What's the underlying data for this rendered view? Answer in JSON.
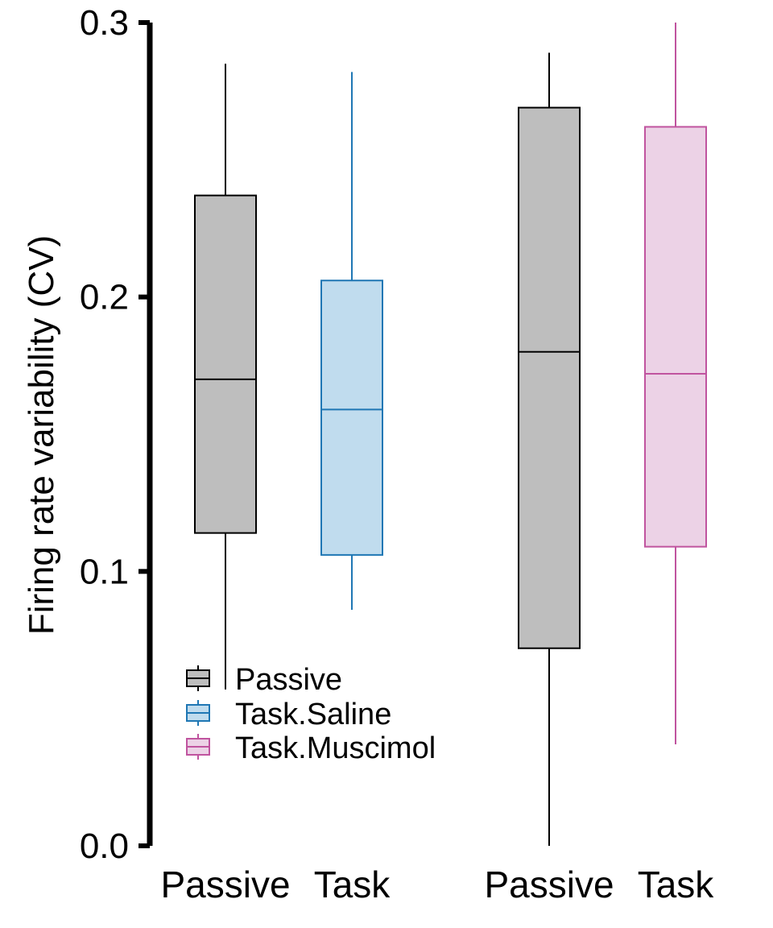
{
  "chart_data": {
    "type": "boxplot",
    "ylabel": "Firing rate variability (CV)",
    "xlabel": "",
    "ylim": [
      0,
      0.3
    ],
    "yticks": [
      0.0,
      0.1,
      0.2,
      0.3
    ],
    "ytick_labels": [
      "0.0",
      "0.1",
      "0.2",
      "0.3"
    ],
    "grid": false,
    "legend_position": "bottom-left",
    "legend": [
      {
        "label": "Passive",
        "stroke": "#000000",
        "fill": "#bebebe"
      },
      {
        "label": "Task.Saline",
        "stroke": "#1f77b4",
        "fill": "#c0dcee"
      },
      {
        "label": "Task.Muscimol",
        "stroke": "#c0549f",
        "fill": "#ecd2e6"
      }
    ],
    "categories": [
      "Passive",
      "Task",
      "Passive",
      "Task"
    ],
    "boxes": [
      {
        "category": "Passive",
        "group": "Passive",
        "min": 0.057,
        "q1": 0.114,
        "median": 0.17,
        "q3": 0.237,
        "max": 0.285
      },
      {
        "category": "Task",
        "group": "Task.Saline",
        "min": 0.086,
        "q1": 0.106,
        "median": 0.159,
        "q3": 0.206,
        "max": 0.282
      },
      {
        "category": "Passive",
        "group": "Passive",
        "min": 0.0,
        "q1": 0.072,
        "median": 0.18,
        "q3": 0.269,
        "max": 0.289
      },
      {
        "category": "Task",
        "group": "Task.Muscimol",
        "min": 0.037,
        "q1": 0.109,
        "median": 0.172,
        "q3": 0.262,
        "max": 0.3
      }
    ]
  }
}
